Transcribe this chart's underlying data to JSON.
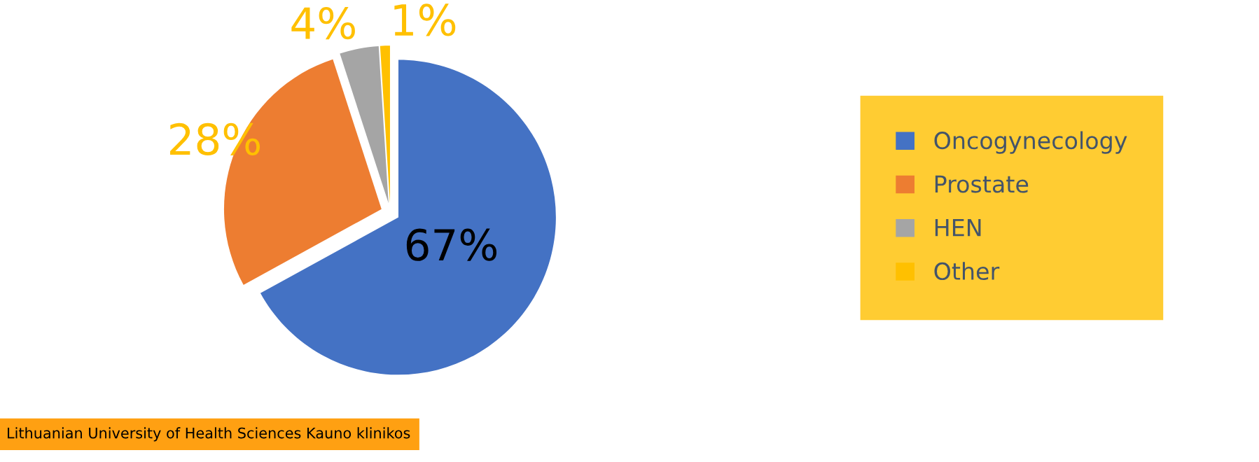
{
  "chart_data": {
    "type": "pie",
    "categories": [
      "Oncogynecology",
      "Prostate",
      "HEN",
      "Other"
    ],
    "values": [
      67,
      28,
      4,
      1
    ],
    "colors": [
      "#4472c4",
      "#ed7d31",
      "#a5a5a5",
      "#ffc000"
    ],
    "value_labels": [
      "67%",
      "28%",
      "4%",
      "1%"
    ],
    "legend": "right",
    "annotations": [
      "Lithuanian University of Health Sciences Kauno klinikos"
    ]
  }
}
